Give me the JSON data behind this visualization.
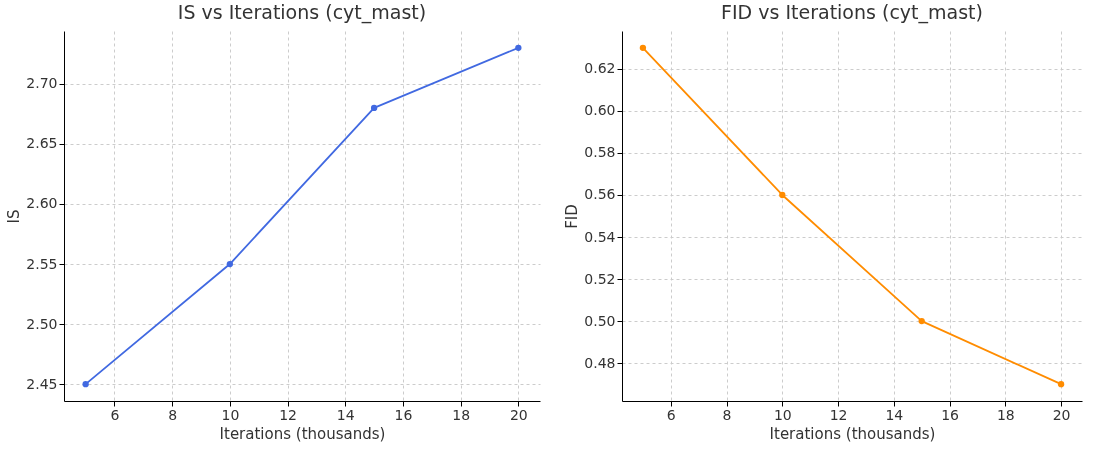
{
  "chart_data": [
    {
      "type": "line",
      "title": "IS vs Iterations (cyt_mast)",
      "xlabel": "Iterations (thousands)",
      "ylabel": "IS",
      "x": [
        5,
        10,
        15,
        20
      ],
      "series": [
        {
          "color": "#4169e1",
          "values": [
            2.45,
            2.55,
            2.68,
            2.73
          ]
        }
      ],
      "xlim": [
        4.25,
        20.75
      ],
      "xticks": [
        6,
        8,
        10,
        12,
        14,
        16,
        18,
        20
      ],
      "ylim": [
        2.436,
        2.744
      ],
      "yticks": [
        {
          "value": 2.45,
          "label": "2.45"
        },
        {
          "value": 2.5,
          "label": "2.50"
        },
        {
          "value": 2.55,
          "label": "2.55"
        },
        {
          "value": 2.6,
          "label": "2.60"
        },
        {
          "value": 2.65,
          "label": "2.65"
        },
        {
          "value": 2.7,
          "label": "2.70"
        }
      ],
      "grid": true,
      "marker": "circle",
      "line_style": "solid"
    },
    {
      "type": "line",
      "title": "FID vs Iterations (cyt_mast)",
      "xlabel": "Iterations (thousands)",
      "ylabel": "FID",
      "x": [
        5,
        10,
        15,
        20
      ],
      "series": [
        {
          "color": "#ff8c00",
          "values": [
            0.63,
            0.56,
            0.5,
            0.47
          ]
        }
      ],
      "xlim": [
        4.25,
        20.75
      ],
      "xticks": [
        6,
        8,
        10,
        12,
        14,
        16,
        18,
        20
      ],
      "ylim": [
        0.462,
        0.638
      ],
      "yticks": [
        {
          "value": 0.48,
          "label": "0.48"
        },
        {
          "value": 0.5,
          "label": "0.50"
        },
        {
          "value": 0.52,
          "label": "0.52"
        },
        {
          "value": 0.54,
          "label": "0.54"
        },
        {
          "value": 0.56,
          "label": "0.56"
        },
        {
          "value": 0.58,
          "label": "0.58"
        },
        {
          "value": 0.6,
          "label": "0.60"
        },
        {
          "value": 0.62,
          "label": "0.62"
        }
      ],
      "grid": true,
      "marker": "circle",
      "line_style": "solid"
    }
  ]
}
